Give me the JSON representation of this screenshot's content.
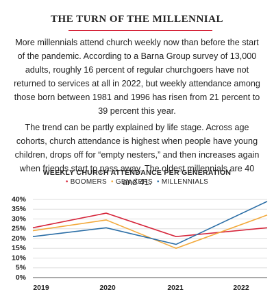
{
  "heading": {
    "title": "THE TURN OF THE MILLENNIAL"
  },
  "paragraphs": [
    "More millennials attend church weekly now than before the start of the pandemic. According to a Barna Group survey of 13,000 adults, roughly 16 percent of regular churchgoers have not returned to services at all in 2022, but weekly attendance among those born between 1981 and 1996 has risen from 21 percent to 39 percent this year.",
    "The trend can be partly explained by life stage. Across age cohorts, church attendance is highest when people have young children, drops off for “empty nesters,” and then increases again when friends start to pass away. The oldest millennials are 40 and 41."
  ],
  "chart_data": {
    "type": "line",
    "title": "WEEKLY CHURCH ATTENDANCE PER GENERATION",
    "categories": [
      "2019",
      "2020",
      "2021",
      "2022"
    ],
    "series": [
      {
        "name": "BOOMERS",
        "color": "#d6263b",
        "values": [
          25.5,
          33,
          21,
          25.5
        ]
      },
      {
        "name": "GEN XERS",
        "color": "#f2a93b",
        "values": [
          24,
          29.5,
          15,
          32
        ]
      },
      {
        "name": "MILLENNIALS",
        "color": "#2b6ea6",
        "values": [
          21,
          25.5,
          17,
          39
        ]
      }
    ],
    "ylim": [
      0,
      40
    ],
    "yticks": [
      {
        "value": 0,
        "label": "0%"
      },
      {
        "value": 5,
        "label": "5%"
      },
      {
        "value": 10,
        "label": "10%"
      },
      {
        "value": 15,
        "label": "15%"
      },
      {
        "value": 20,
        "label": "20%"
      },
      {
        "value": 25,
        "label": "25%"
      },
      {
        "value": 30,
        "label": "30%"
      },
      {
        "value": 35,
        "label": "35%"
      },
      {
        "value": 40,
        "label": "40%"
      }
    ],
    "grid": true
  }
}
